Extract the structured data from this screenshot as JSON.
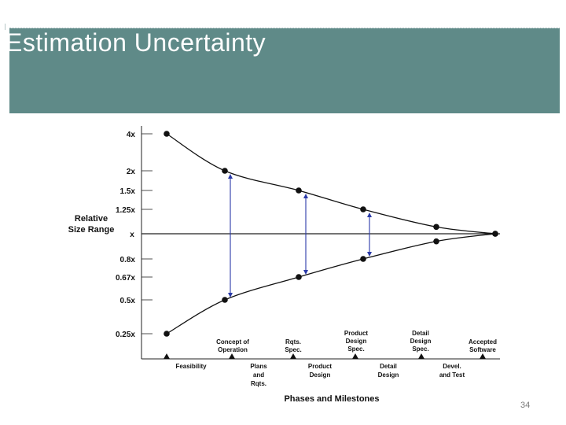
{
  "slide": {
    "title": "Estimation Uncertainty",
    "page_number": "34"
  },
  "chart_data": {
    "type": "line",
    "ylabel": "Relative\nSize Range",
    "xlabel": "Phases and Milestones",
    "y_ticks": [
      {
        "label": "4x",
        "value": 4
      },
      {
        "label": "2x",
        "value": 2
      },
      {
        "label": "1.5x",
        "value": 1.5
      },
      {
        "label": "1.25x",
        "value": 1.25
      },
      {
        "label": "x",
        "value": 1
      },
      {
        "label": "0.8x",
        "value": 0.8
      },
      {
        "label": "0.67x",
        "value": 0.67
      },
      {
        "label": "0.5x",
        "value": 0.5
      },
      {
        "label": "0.25x",
        "value": 0.25
      }
    ],
    "milestones_top": [
      "",
      "Concept of\nOperation",
      "Rqts.\nSpec.",
      "Product\nDesign\nSpec.",
      "Detail\nDesign\nSpec.",
      "Accepted\nSoftware"
    ],
    "phases_bottom": [
      "Feasibility",
      "Plans\nand\nRqts.",
      "Product\nDesign",
      "Detail\nDesign",
      "Devel.\nand Test"
    ],
    "series": [
      {
        "values": [
          4,
          2,
          1.5,
          1.25,
          1.1,
          1
        ]
      },
      {
        "values": [
          0.25,
          0.5,
          0.67,
          0.8,
          0.9,
          1
        ]
      }
    ],
    "range_arrows_at_milestones": [
      1,
      2,
      3
    ],
    "axis_ticks": 9
  }
}
